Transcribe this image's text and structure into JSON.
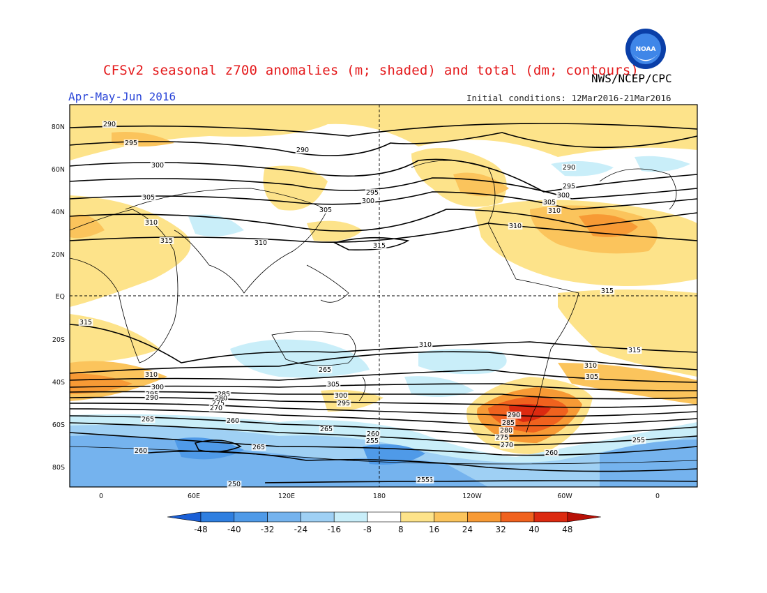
{
  "header": {
    "title": "CFSv2 seasonal z700 anomalies (m; shaded) and total (dm; contours)",
    "org": "NWS/NCEP/CPC",
    "season": "Apr-May-Jun 2016",
    "initial_conditions": "Initial conditions: 12Mar2016-21Mar2016",
    "logo_text": "NOAA"
  },
  "map": {
    "lat_labels": [
      "80N",
      "60N",
      "40N",
      "20N",
      "EQ",
      "20S",
      "40S",
      "60S",
      "80S"
    ],
    "lon_labels": [
      "0",
      "60E",
      "120E",
      "180",
      "120W",
      "60W",
      "0"
    ],
    "contour_labels": [
      "290",
      "295",
      "290",
      "300",
      "305",
      "310",
      "315",
      "295",
      "300",
      "305",
      "310",
      "315",
      "310",
      "315",
      "290",
      "295",
      "300",
      "305",
      "310",
      "315",
      "315",
      "315",
      "310",
      "315",
      "310",
      "305",
      "310",
      "300",
      "295",
      "290",
      "285",
      "280",
      "275",
      "270",
      "265",
      "305",
      "300",
      "295",
      "290",
      "285",
      "280",
      "275",
      "270",
      "265",
      "260",
      "260",
      "255",
      "265",
      "265",
      "260",
      "260",
      "255",
      "255",
      "255",
      "250"
    ]
  },
  "colorbar": {
    "ticks": [
      "-48",
      "-40",
      "-32",
      "-24",
      "-16",
      "-8",
      "8",
      "16",
      "24",
      "32",
      "40",
      "48"
    ],
    "colors": [
      "#1a5fd6",
      "#2f7fe0",
      "#4f9ae8",
      "#75b3ee",
      "#9fd0f4",
      "#c9eef9",
      "#ffffff",
      "#fde38a",
      "#fbc45c",
      "#f79a35",
      "#f0621e",
      "#dc2a10",
      "#b81006"
    ]
  }
}
